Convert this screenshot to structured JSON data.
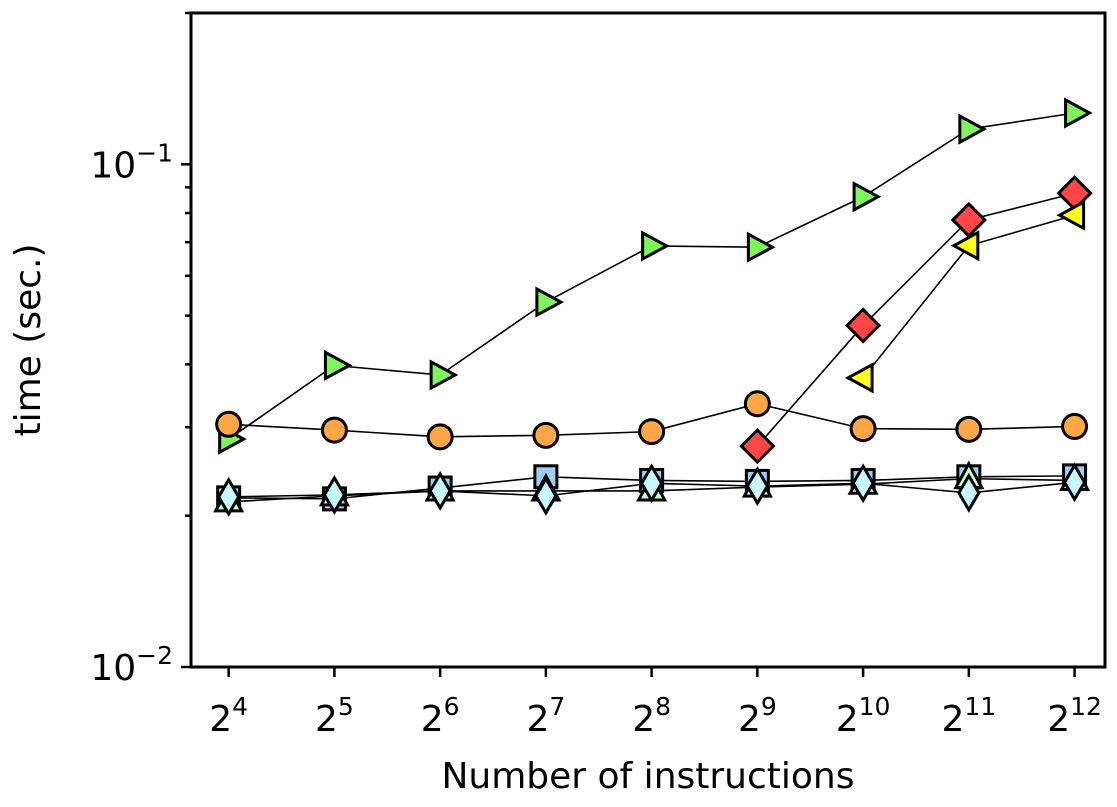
{
  "chart_data": {
    "type": "line",
    "title": "",
    "xlabel": "Number of instructions",
    "ylabel": "time (sec.)",
    "x_scale": "log2",
    "y_scale": "log",
    "x_ticks": [
      {
        "base": "2",
        "exp": "4",
        "value": 16
      },
      {
        "base": "2",
        "exp": "5",
        "value": 32
      },
      {
        "base": "2",
        "exp": "6",
        "value": 64
      },
      {
        "base": "2",
        "exp": "7",
        "value": 128
      },
      {
        "base": "2",
        "exp": "8",
        "value": 256
      },
      {
        "base": "2",
        "exp": "9",
        "value": 512
      },
      {
        "base": "2",
        "exp": "10",
        "value": 1024
      },
      {
        "base": "2",
        "exp": "11",
        "value": 2048
      },
      {
        "base": "2",
        "exp": "12",
        "value": 4096
      }
    ],
    "y_ticks": [
      {
        "base": "10",
        "exp": "−2",
        "value": 0.01
      },
      {
        "base": "10",
        "exp": "−1",
        "value": 0.1
      }
    ],
    "xlim": [
      12.5,
      5000
    ],
    "ylim": [
      0.01,
      0.2
    ],
    "grid": false,
    "series": [
      {
        "marker": "triangle-right",
        "color": "#7ef55a",
        "x": [
          16,
          32,
          64,
          128,
          256,
          512,
          1024,
          2048,
          4096
        ],
        "values": [
          0.0284,
          0.0398,
          0.0381,
          0.0532,
          0.0688,
          0.0684,
          0.0862,
          0.1175,
          0.1265
        ]
      },
      {
        "marker": "circle",
        "color": "#ffa646",
        "x": [
          16,
          32,
          64,
          128,
          256,
          512,
          1024,
          2048,
          4096
        ],
        "values": [
          0.0304,
          0.0296,
          0.0287,
          0.0289,
          0.0294,
          0.0334,
          0.0298,
          0.0297,
          0.0301
        ]
      },
      {
        "marker": "diamond",
        "color": "#ff4646",
        "x": [
          512,
          1024,
          2048,
          4096
        ],
        "values": [
          0.0275,
          0.0478,
          0.0775,
          0.0876
        ]
      },
      {
        "marker": "triangle-left",
        "color": "#ffff1e",
        "x": [
          1024,
          2048,
          4096
        ],
        "values": [
          0.0376,
          0.0689,
          0.0792
        ]
      },
      {
        "marker": "square",
        "color": "#9fcdf5",
        "x": [
          16,
          32,
          64,
          128,
          256,
          512,
          1024,
          2048,
          4096
        ],
        "values": [
          0.0217,
          0.0216,
          0.0227,
          0.0239,
          0.0235,
          0.0234,
          0.0235,
          0.0239,
          0.024
        ]
      },
      {
        "marker": "triangle-up",
        "color": "#c8ffc8",
        "x": [
          16,
          32,
          64,
          128,
          256,
          512,
          1024,
          2048,
          4096
        ],
        "values": [
          0.0213,
          0.0219,
          0.0224,
          0.0224,
          0.0224,
          0.0228,
          0.0231,
          0.0237,
          0.0235
        ]
      },
      {
        "marker": "thin-diamond",
        "color": "#c8f8ff",
        "x": [
          16,
          32,
          64,
          128,
          256,
          512,
          1024,
          2048,
          4096
        ],
        "values": [
          0.0218,
          0.022,
          0.0224,
          0.0219,
          0.0232,
          0.0229,
          0.0232,
          0.0222,
          0.0233
        ]
      }
    ]
  }
}
